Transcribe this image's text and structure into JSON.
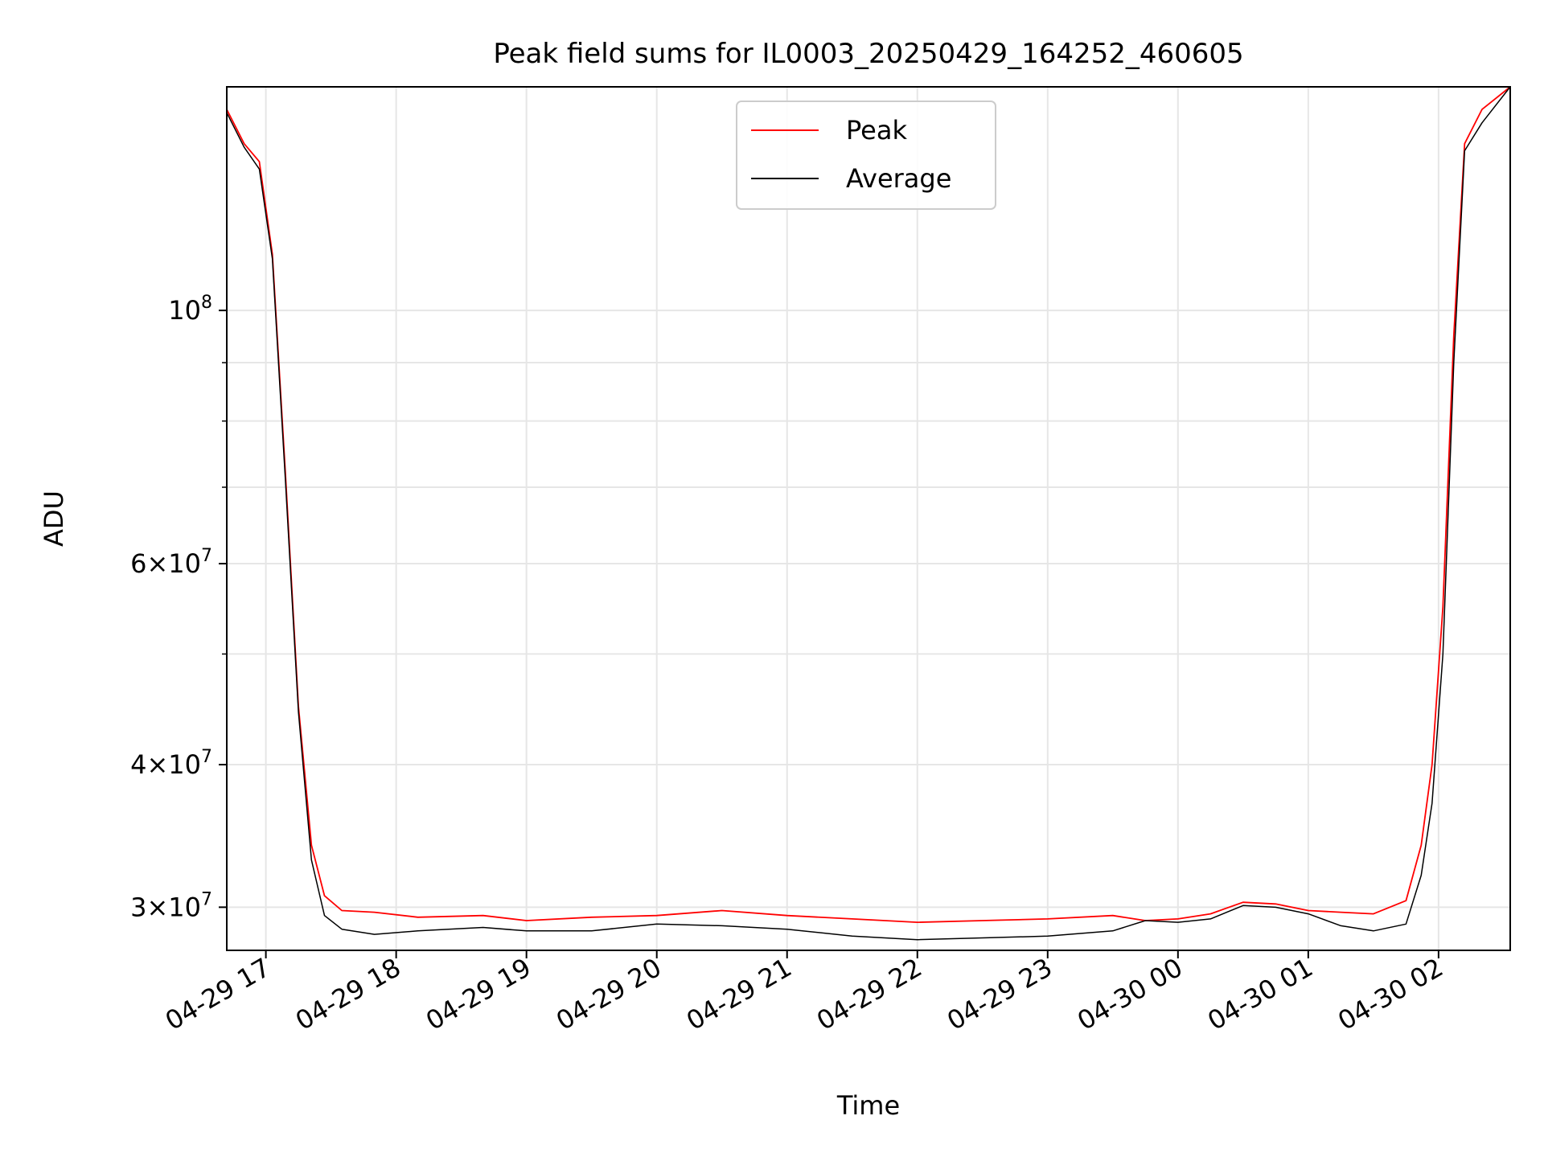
{
  "chart_data": {
    "type": "line",
    "title": "Peak field sums for IL0003_20250429_164252_460605",
    "xlabel": "Time",
    "ylabel": "ADU",
    "y_scale": "log",
    "xlim": [
      "2025-04-29 16:42",
      "2025-04-30 02:33"
    ],
    "ylim": [
      27500000,
      157000000
    ],
    "grid": true,
    "legend_position": "upper center",
    "x_ticks": [
      {
        "t": "2025-04-29 17:00",
        "label": "04-29 17"
      },
      {
        "t": "2025-04-29 18:00",
        "label": "04-29 18"
      },
      {
        "t": "2025-04-29 19:00",
        "label": "04-29 19"
      },
      {
        "t": "2025-04-29 20:00",
        "label": "04-29 20"
      },
      {
        "t": "2025-04-29 21:00",
        "label": "04-29 21"
      },
      {
        "t": "2025-04-29 22:00",
        "label": "04-29 22"
      },
      {
        "t": "2025-04-29 23:00",
        "label": "04-29 23"
      },
      {
        "t": "2025-04-30 00:00",
        "label": "04-30 00"
      },
      {
        "t": "2025-04-30 01:00",
        "label": "04-30 01"
      },
      {
        "t": "2025-04-30 02:00",
        "label": "04-30 02"
      }
    ],
    "y_ticks": [
      {
        "value": 30000000,
        "mantissa": "3",
        "exponent": "7"
      },
      {
        "value": 40000000,
        "mantissa": "4",
        "exponent": "7"
      },
      {
        "value": 60000000,
        "mantissa": "6",
        "exponent": "7"
      },
      {
        "value": 100000000,
        "mantissa": "",
        "exponent": "8"
      }
    ],
    "y_minor_ticks": [
      50000000,
      70000000,
      80000000,
      90000000
    ],
    "series": [
      {
        "name": "Peak",
        "color": "#ff0000",
        "points": [
          [
            "2025-04-29 16:42",
            150000000
          ],
          [
            "2025-04-29 16:50",
            140000000
          ],
          [
            "2025-04-29 16:57",
            135000000
          ],
          [
            "2025-04-29 17:03",
            112000000
          ],
          [
            "2025-04-29 17:09",
            72000000
          ],
          [
            "2025-04-29 17:15",
            45000000
          ],
          [
            "2025-04-29 17:21",
            34000000
          ],
          [
            "2025-04-29 17:27",
            30700000
          ],
          [
            "2025-04-29 17:35",
            29800000
          ],
          [
            "2025-04-29 17:50",
            29700000
          ],
          [
            "2025-04-29 18:10",
            29400000
          ],
          [
            "2025-04-29 18:40",
            29500000
          ],
          [
            "2025-04-29 19:00",
            29200000
          ],
          [
            "2025-04-29 19:30",
            29400000
          ],
          [
            "2025-04-29 20:00",
            29500000
          ],
          [
            "2025-04-29 20:30",
            29800000
          ],
          [
            "2025-04-29 21:00",
            29500000
          ],
          [
            "2025-04-29 21:30",
            29300000
          ],
          [
            "2025-04-29 22:00",
            29100000
          ],
          [
            "2025-04-29 22:30",
            29200000
          ],
          [
            "2025-04-29 23:00",
            29300000
          ],
          [
            "2025-04-29 23:30",
            29500000
          ],
          [
            "2025-04-29 23:45",
            29200000
          ],
          [
            "2025-04-30 00:00",
            29300000
          ],
          [
            "2025-04-30 00:15",
            29600000
          ],
          [
            "2025-04-30 00:30",
            30300000
          ],
          [
            "2025-04-30 00:45",
            30200000
          ],
          [
            "2025-04-30 01:00",
            29800000
          ],
          [
            "2025-04-30 01:15",
            29700000
          ],
          [
            "2025-04-30 01:30",
            29600000
          ],
          [
            "2025-04-30 01:45",
            30400000
          ],
          [
            "2025-04-30 01:52",
            34000000
          ],
          [
            "2025-04-30 01:57",
            40000000
          ],
          [
            "2025-04-30 02:02",
            55000000
          ],
          [
            "2025-04-30 02:07",
            95000000
          ],
          [
            "2025-04-30 02:12",
            140000000
          ],
          [
            "2025-04-30 02:20",
            150000000
          ],
          [
            "2025-04-30 02:33",
            157000000
          ]
        ]
      },
      {
        "name": "Average",
        "color": "#000000",
        "points": [
          [
            "2025-04-29 16:42",
            149000000
          ],
          [
            "2025-04-29 16:50",
            139000000
          ],
          [
            "2025-04-29 16:57",
            133000000
          ],
          [
            "2025-04-29 17:03",
            111000000
          ],
          [
            "2025-04-29 17:09",
            71000000
          ],
          [
            "2025-04-29 17:15",
            44500000
          ],
          [
            "2025-04-29 17:21",
            33000000
          ],
          [
            "2025-04-29 17:27",
            29500000
          ],
          [
            "2025-04-29 17:35",
            28700000
          ],
          [
            "2025-04-29 17:50",
            28400000
          ],
          [
            "2025-04-29 18:10",
            28600000
          ],
          [
            "2025-04-29 18:40",
            28800000
          ],
          [
            "2025-04-29 19:00",
            28600000
          ],
          [
            "2025-04-29 19:30",
            28600000
          ],
          [
            "2025-04-29 20:00",
            29000000
          ],
          [
            "2025-04-29 20:30",
            28900000
          ],
          [
            "2025-04-29 21:00",
            28700000
          ],
          [
            "2025-04-29 21:30",
            28300000
          ],
          [
            "2025-04-29 22:00",
            28100000
          ],
          [
            "2025-04-29 22:30",
            28200000
          ],
          [
            "2025-04-29 23:00",
            28300000
          ],
          [
            "2025-04-29 23:30",
            28600000
          ],
          [
            "2025-04-29 23:45",
            29200000
          ],
          [
            "2025-04-30 00:00",
            29100000
          ],
          [
            "2025-04-30 00:15",
            29300000
          ],
          [
            "2025-04-30 00:30",
            30100000
          ],
          [
            "2025-04-30 00:45",
            30000000
          ],
          [
            "2025-04-30 01:00",
            29600000
          ],
          [
            "2025-04-30 01:15",
            28900000
          ],
          [
            "2025-04-30 01:30",
            28600000
          ],
          [
            "2025-04-30 01:45",
            29000000
          ],
          [
            "2025-04-30 01:52",
            32000000
          ],
          [
            "2025-04-30 01:57",
            37000000
          ],
          [
            "2025-04-30 02:02",
            50000000
          ],
          [
            "2025-04-30 02:07",
            90000000
          ],
          [
            "2025-04-30 02:12",
            138000000
          ],
          [
            "2025-04-30 02:20",
            146000000
          ],
          [
            "2025-04-30 02:33",
            157000000
          ]
        ]
      }
    ]
  }
}
